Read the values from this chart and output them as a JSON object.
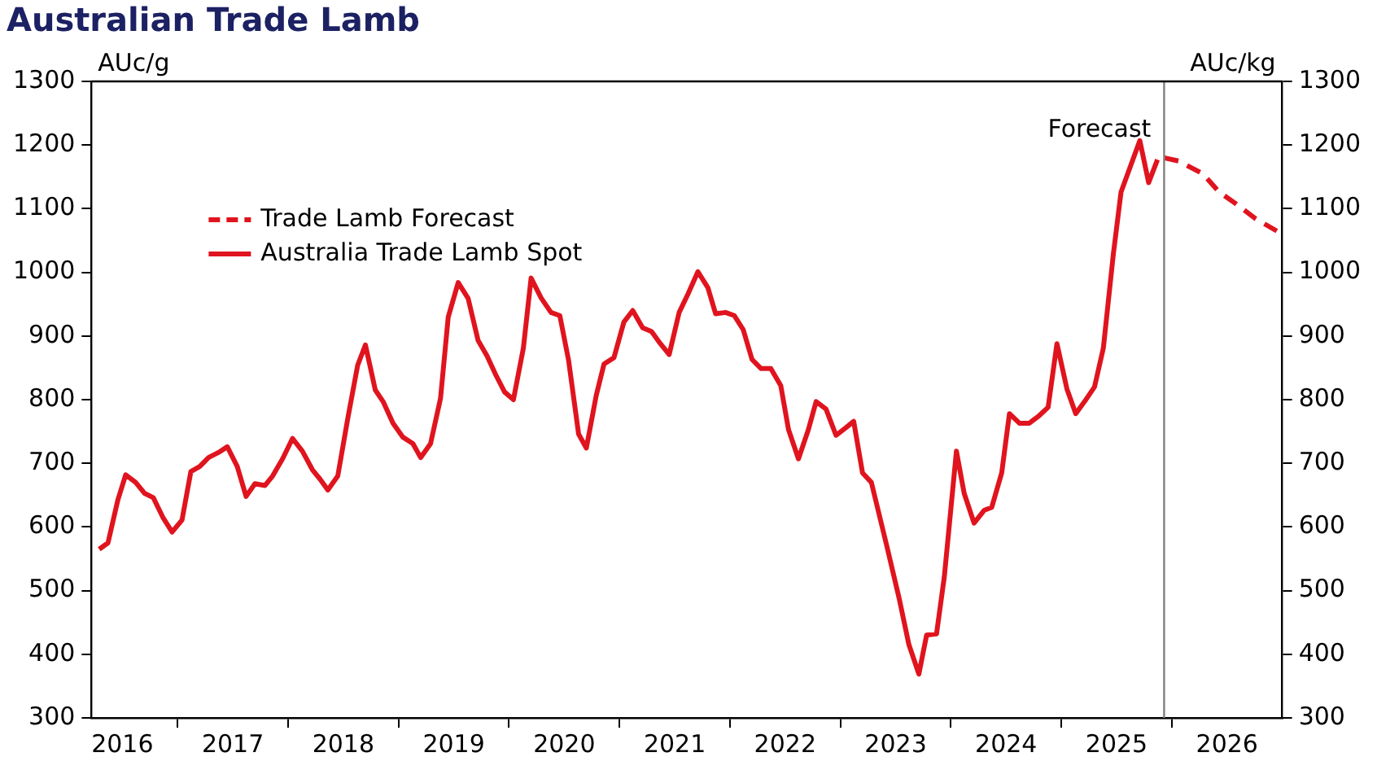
{
  "chart_data": {
    "type": "line",
    "title": "Australian Trade Lamb",
    "ylabel": "AUc/g",
    "y2label": "AUc/kg",
    "series": [
      {
        "name": "Trade Lamb Forecast",
        "color": "#e0141e",
        "line_style": "dashed",
        "x": [
          2025.93,
          2026.06,
          2026.28,
          2026.43,
          2026.57,
          2026.76,
          2026.95
        ],
        "values": [
          1180,
          1175,
          1155,
          1126,
          1109,
          1084,
          1065
        ]
      },
      {
        "name": "Australia Trade Lamb Spot",
        "color": "#e0141e",
        "line_style": "solid",
        "x": [
          2016.29,
          2016.37,
          2016.46,
          2016.53,
          2016.62,
          2016.7,
          2016.78,
          2016.87,
          2016.95,
          2017.04,
          2017.12,
          2017.2,
          2017.28,
          2017.37,
          2017.45,
          2017.54,
          2017.62,
          2017.7,
          2017.79,
          2017.86,
          2017.95,
          2018.04,
          2018.13,
          2018.22,
          2018.29,
          2018.36,
          2018.45,
          2018.54,
          2018.63,
          2018.7,
          2018.79,
          2018.86,
          2018.95,
          2019.04,
          2019.13,
          2019.2,
          2019.29,
          2019.38,
          2019.45,
          2019.54,
          2019.63,
          2019.72,
          2019.8,
          2019.88,
          2019.96,
          2020.04,
          2020.13,
          2020.2,
          2020.29,
          2020.38,
          2020.46,
          2020.54,
          2020.63,
          2020.7,
          2020.79,
          2020.86,
          2020.95,
          2021.04,
          2021.12,
          2021.21,
          2021.29,
          2021.37,
          2021.45,
          2021.54,
          2021.62,
          2021.71,
          2021.8,
          2021.87,
          2021.96,
          2022.04,
          2022.12,
          2022.2,
          2022.28,
          2022.37,
          2022.46,
          2022.53,
          2022.62,
          2022.71,
          2022.78,
          2022.87,
          2022.96,
          2023.05,
          2023.12,
          2023.2,
          2023.28,
          2023.42,
          2023.53,
          2023.62,
          2023.71,
          2023.78,
          2023.87,
          2023.94,
          2024.05,
          2024.12,
          2024.21,
          2024.3,
          2024.37,
          2024.46,
          2024.53,
          2024.62,
          2024.71,
          2024.8,
          2024.88,
          2024.96,
          2025.05,
          2025.13,
          2025.21,
          2025.3,
          2025.38,
          2025.47,
          2025.54,
          2025.71,
          2025.79,
          2025.87
        ],
        "values": [
          565,
          575,
          643,
          682,
          670,
          653,
          646,
          614,
          592,
          611,
          687,
          695,
          709,
          717,
          726,
          695,
          648,
          668,
          665,
          680,
          707,
          739,
          719,
          690,
          675,
          658,
          680,
          770,
          854,
          886,
          815,
          797,
          763,
          741,
          731,
          709,
          731,
          802,
          930,
          984,
          959,
          893,
          869,
          839,
          812,
          800,
          881,
          991,
          960,
          937,
          932,
          861,
          746,
          724,
          807,
          856,
          866,
          922,
          940,
          913,
          907,
          888,
          871,
          937,
          966,
          1001,
          976,
          935,
          937,
          932,
          910,
          863,
          849,
          849,
          822,
          753,
          707,
          753,
          797,
          785,
          744,
          756,
          766,
          685,
          670,
          570,
          489,
          415,
          369,
          430,
          432,
          521,
          719,
          653,
          606,
          626,
          631,
          685,
          778,
          763,
          763,
          775,
          788,
          888,
          817,
          778,
          797,
          820,
          881,
          1028,
          1126,
          1207,
          1141,
          1177
        ]
      }
    ],
    "xlim": [
      2016.22,
      2027
    ],
    "xticks": [
      {
        "value": 2016.5,
        "label": "2016"
      },
      {
        "value": 2017,
        "label": null
      },
      {
        "value": 2017.5,
        "label": "2017"
      },
      {
        "value": 2018,
        "label": null
      },
      {
        "value": 2018.5,
        "label": "2018"
      },
      {
        "value": 2019,
        "label": null
      },
      {
        "value": 2019.5,
        "label": "2019"
      },
      {
        "value": 2020,
        "label": null
      },
      {
        "value": 2020.5,
        "label": "2020"
      },
      {
        "value": 2021,
        "label": null
      },
      {
        "value": 2021.5,
        "label": "2021"
      },
      {
        "value": 2022,
        "label": null
      },
      {
        "value": 2022.5,
        "label": "2022"
      },
      {
        "value": 2023,
        "label": null
      },
      {
        "value": 2023.5,
        "label": "2023"
      },
      {
        "value": 2024,
        "label": null
      },
      {
        "value": 2024.5,
        "label": "2024"
      },
      {
        "value": 2025,
        "label": null
      },
      {
        "value": 2025.5,
        "label": "2025"
      },
      {
        "value": 2026,
        "label": null
      },
      {
        "value": 2026.5,
        "label": "2026"
      }
    ],
    "ylim": [
      300,
      1300
    ],
    "yticks": [
      300,
      400,
      500,
      600,
      700,
      800,
      900,
      1000,
      1100,
      1200,
      1300
    ],
    "y2lim": [
      300,
      1300
    ],
    "y2ticks": [
      300,
      400,
      500,
      600,
      700,
      800,
      900,
      1000,
      1100,
      1200,
      1300
    ],
    "ref_lines": [
      {
        "axis": "x",
        "value": 2025.93,
        "label": "Forecast",
        "color": "#808080"
      }
    ],
    "legend": "top left",
    "grid": false
  }
}
